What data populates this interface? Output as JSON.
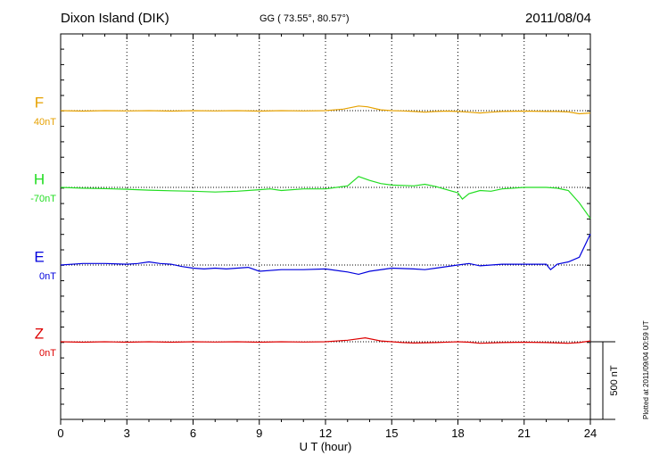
{
  "header": {
    "title": "Dixon Island (DIK)",
    "coords": "GG ( 73.55°,  80.57°)",
    "date": "2011/08/04",
    "plotted": "Plotted at 2011/09/04 00:59 UT"
  },
  "chart_data": {
    "type": "line",
    "title": "Dixon Island (DIK)",
    "xlabel": "U T (hour)",
    "xlim": [
      0,
      24
    ],
    "xticks": [
      0,
      3,
      6,
      9,
      12,
      15,
      18,
      21,
      24
    ],
    "scale_bar_label": "500 nT",
    "scale_bar_nT": 500,
    "grid": true,
    "series": [
      {
        "name": "F",
        "baseline_label": "40nT",
        "color": "#e6a100",
        "points": [
          [
            0,
            0
          ],
          [
            1,
            -3
          ],
          [
            2,
            0
          ],
          [
            3,
            -2
          ],
          [
            4,
            0
          ],
          [
            5,
            -3
          ],
          [
            6,
            0
          ],
          [
            7,
            -2
          ],
          [
            8,
            0
          ],
          [
            9,
            -3
          ],
          [
            10,
            0
          ],
          [
            11,
            -2
          ],
          [
            12,
            0
          ],
          [
            12.8,
            10
          ],
          [
            13.5,
            30
          ],
          [
            13.9,
            25
          ],
          [
            14.5,
            5
          ],
          [
            15,
            0
          ],
          [
            15.5,
            -2
          ],
          [
            16,
            -5
          ],
          [
            16.5,
            -10
          ],
          [
            17,
            -5
          ],
          [
            17.5,
            -3
          ],
          [
            18,
            -5
          ],
          [
            18.5,
            -10
          ],
          [
            19,
            -15
          ],
          [
            19.5,
            -10
          ],
          [
            20,
            -5
          ],
          [
            21,
            -3
          ],
          [
            22,
            -5
          ],
          [
            22.5,
            -5
          ],
          [
            23,
            -8
          ],
          [
            23.5,
            -20
          ],
          [
            24,
            -15
          ]
        ]
      },
      {
        "name": "H",
        "baseline_label": "-70nT",
        "color": "#22dd22",
        "points": [
          [
            0,
            0
          ],
          [
            1,
            -5
          ],
          [
            2,
            -8
          ],
          [
            3,
            -12
          ],
          [
            4,
            -18
          ],
          [
            5,
            -22
          ],
          [
            6,
            -25
          ],
          [
            7,
            -30
          ],
          [
            8,
            -25
          ],
          [
            9,
            -15
          ],
          [
            9.5,
            -10
          ],
          [
            10,
            -20
          ],
          [
            11,
            -10
          ],
          [
            12,
            -10
          ],
          [
            13,
            10
          ],
          [
            13.5,
            70
          ],
          [
            14,
            45
          ],
          [
            14.5,
            25
          ],
          [
            15,
            15
          ],
          [
            16,
            10
          ],
          [
            16.5,
            20
          ],
          [
            17,
            5
          ],
          [
            18,
            -35
          ],
          [
            18.2,
            -75
          ],
          [
            18.5,
            -40
          ],
          [
            19,
            -20
          ],
          [
            19.5,
            -25
          ],
          [
            20,
            -10
          ],
          [
            21,
            0
          ],
          [
            22,
            0
          ],
          [
            22.5,
            -5
          ],
          [
            23,
            -20
          ],
          [
            23.5,
            -100
          ],
          [
            24,
            -200
          ]
        ]
      },
      {
        "name": "E",
        "baseline_label": "0nT",
        "color": "#0000dd",
        "points": [
          [
            0,
            0
          ],
          [
            1,
            10
          ],
          [
            2,
            10
          ],
          [
            3,
            5
          ],
          [
            3.5,
            10
          ],
          [
            4,
            20
          ],
          [
            4.5,
            10
          ],
          [
            5,
            5
          ],
          [
            5.5,
            -10
          ],
          [
            6,
            -20
          ],
          [
            6.5,
            -25
          ],
          [
            7,
            -20
          ],
          [
            7.5,
            -25
          ],
          [
            8,
            -20
          ],
          [
            8.5,
            -15
          ],
          [
            9,
            -40
          ],
          [
            10,
            -30
          ],
          [
            11,
            -30
          ],
          [
            12,
            -25
          ],
          [
            13,
            -45
          ],
          [
            13.5,
            -60
          ],
          [
            14,
            -40
          ],
          [
            15,
            -20
          ],
          [
            16,
            -25
          ],
          [
            16.5,
            -30
          ],
          [
            17,
            -20
          ],
          [
            18,
            0
          ],
          [
            18.5,
            10
          ],
          [
            19,
            -5
          ],
          [
            20,
            5
          ],
          [
            21,
            5
          ],
          [
            22,
            5
          ],
          [
            22.2,
            -30
          ],
          [
            22.5,
            5
          ],
          [
            23,
            20
          ],
          [
            23.5,
            50
          ],
          [
            24,
            200
          ]
        ]
      },
      {
        "name": "Z",
        "baseline_label": "0nT",
        "color": "#dd0000",
        "points": [
          [
            0,
            0
          ],
          [
            1,
            -3
          ],
          [
            2,
            0
          ],
          [
            3,
            -3
          ],
          [
            4,
            0
          ],
          [
            5,
            -3
          ],
          [
            6,
            0
          ],
          [
            7,
            -2
          ],
          [
            8,
            0
          ],
          [
            9,
            -3
          ],
          [
            10,
            0
          ],
          [
            11,
            -2
          ],
          [
            12,
            0
          ],
          [
            13,
            10
          ],
          [
            13.8,
            25
          ],
          [
            14.5,
            5
          ],
          [
            15,
            0
          ],
          [
            15.5,
            -5
          ],
          [
            16,
            -8
          ],
          [
            17,
            -5
          ],
          [
            18,
            0
          ],
          [
            18.5,
            -3
          ],
          [
            19,
            -10
          ],
          [
            20,
            -5
          ],
          [
            21,
            -3
          ],
          [
            22,
            -5
          ],
          [
            23,
            -10
          ],
          [
            23.5,
            -5
          ],
          [
            24,
            5
          ]
        ]
      }
    ]
  }
}
